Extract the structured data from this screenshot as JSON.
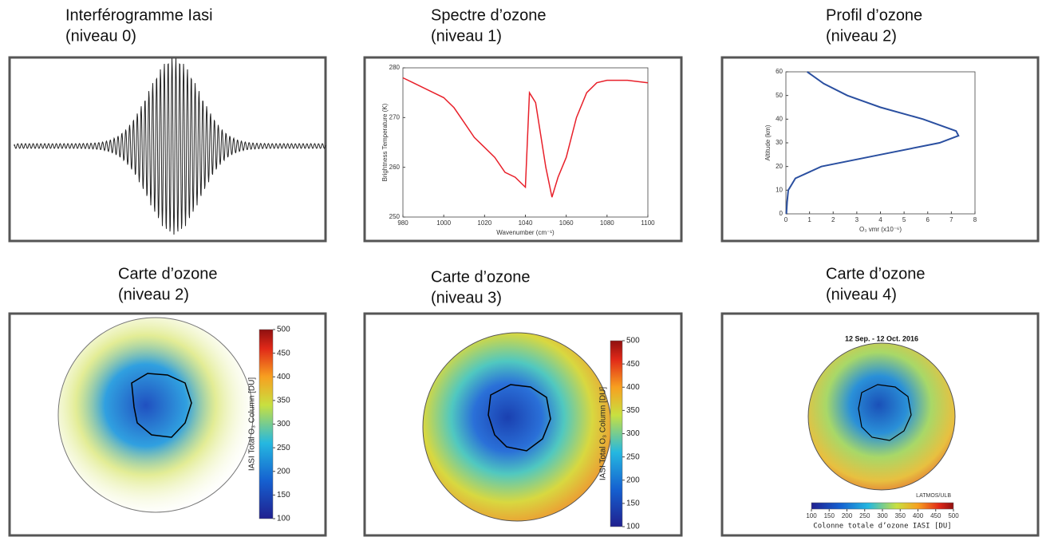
{
  "panels": [
    {
      "title": [
        "Interférogramme Iasi",
        "(niveau 0)"
      ]
    },
    {
      "title": [
        "Spectre d’ozone",
        "(niveau 1)"
      ],
      "chart": {
        "type": "line",
        "color": "#e8202a",
        "x": [
          980,
          985,
          990,
          995,
          1000,
          1005,
          1010,
          1015,
          1020,
          1025,
          1030,
          1035,
          1040,
          1042,
          1045,
          1050,
          1053,
          1056,
          1060,
          1065,
          1070,
          1075,
          1080,
          1090,
          1100
        ],
        "values": [
          278,
          277,
          276,
          275,
          274,
          272,
          269,
          266,
          264,
          262,
          259,
          258,
          256,
          275,
          273,
          260,
          254,
          258,
          262,
          270,
          275,
          277,
          277.5,
          277.5,
          277
        ],
        "xlim": [
          980,
          1100
        ],
        "ylim": [
          250,
          280
        ],
        "xticks": [
          980,
          1000,
          1020,
          1040,
          1060,
          1080,
          1100
        ],
        "yticks": [
          250,
          260,
          270,
          280
        ],
        "xlabel": "Wavenumber (cm⁻¹)",
        "ylabel": "Brightness Temperature (K)"
      }
    },
    {
      "title": [
        "Profil d’ozone",
        "(niveau 2)"
      ],
      "chart": {
        "type": "line",
        "color": "#2a4fa0",
        "altitude": [
          0,
          5,
          10,
          15,
          20,
          25,
          30,
          33,
          35,
          40,
          45,
          50,
          55,
          60
        ],
        "values": [
          0.02,
          0.05,
          0.1,
          0.4,
          1.5,
          4,
          6.5,
          7.3,
          7.2,
          5.8,
          4,
          2.6,
          1.6,
          0.9
        ],
        "xlim": [
          0,
          8
        ],
        "ylim": [
          0,
          60
        ],
        "xticks": [
          0,
          1,
          2,
          3,
          4,
          5,
          6,
          7,
          8
        ],
        "yticks": [
          0,
          10,
          20,
          30,
          40,
          50,
          60
        ],
        "xlabel": "O₃ vmr (x10⁻⁶)",
        "ylabel": "Altitude (km)"
      }
    },
    {
      "title": [
        "Carte d’ozone",
        "(niveau 2)"
      ],
      "colorbar": {
        "lim": [
          100,
          500
        ],
        "ticks": [
          100,
          150,
          200,
          250,
          300,
          350,
          400,
          450,
          500
        ],
        "label": "IASI Total O₃ Column [DU]"
      }
    },
    {
      "title": [
        "Carte d’ozone",
        "(niveau 3)"
      ],
      "colorbar": {
        "lim": [
          100,
          500
        ],
        "ticks": [
          100,
          150,
          200,
          250,
          300,
          350,
          400,
          450,
          500
        ],
        "label": "IASI Total O₃ Column [DU]"
      }
    },
    {
      "title": [
        "Carte d’ozone",
        "(niveau 4)"
      ],
      "map_title": "12 Sep. - 12 Oct. 2016",
      "credit": "LATMOS/ULB",
      "colorbar": {
        "lim": [
          100,
          500
        ],
        "ticks": [
          100,
          150,
          200,
          250,
          300,
          350,
          400,
          450,
          500
        ],
        "label": "Colonne totale d’ozone IASI [DU]"
      }
    }
  ]
}
